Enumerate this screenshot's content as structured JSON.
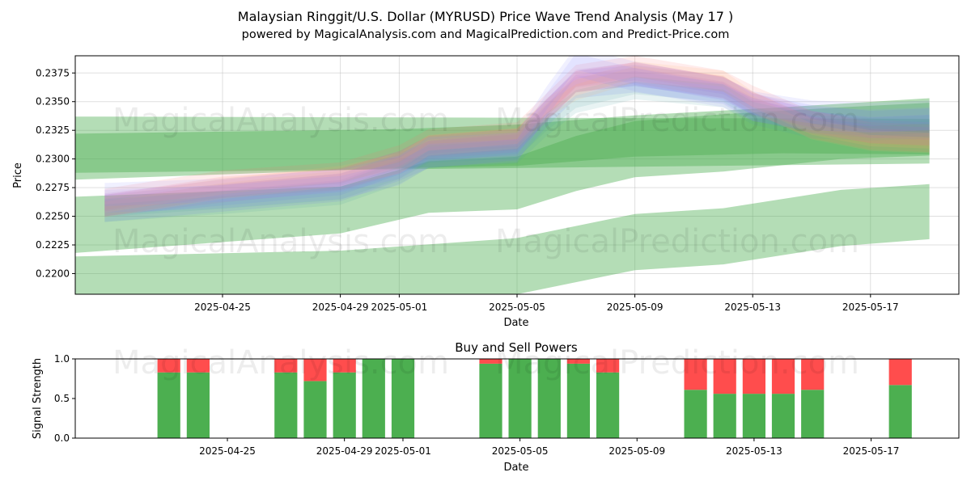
{
  "figure": {
    "title_line1": "Malaysian Ringgit/U.S. Dollar (MYRUSD) Price Wave Trend Analysis (May 17 )",
    "title_line2": "powered by MagicalAnalysis.com and MagicalPrediction.com and Predict-Price.com",
    "watermarks": [
      "MagicalAnalysis.com",
      "MagicalPrediction.com"
    ]
  },
  "colors": {
    "green_band": "#4caf50",
    "buy": "#4caf50",
    "sell": "#ff4d4d",
    "wave_colors": [
      "#6b6bff",
      "#ff6b6b",
      "#c05cc0",
      "#4aa0a0",
      "#ffb070",
      "#8a8aff"
    ]
  },
  "chart_data": [
    {
      "type": "area",
      "title": "",
      "xlabel": "Date",
      "ylabel": "Price",
      "xlim": [
        "2025-04-20",
        "2025-05-20"
      ],
      "ylim": [
        0.2182,
        0.239
      ],
      "x_ticks": [
        "2025-04-25",
        "2025-04-29",
        "2025-05-01",
        "2025-05-05",
        "2025-05-09",
        "2025-05-13",
        "2025-05-17"
      ],
      "y_ticks": [
        "0.2200",
        "0.2225",
        "0.2250",
        "0.2275",
        "0.2300",
        "0.2325",
        "0.2350",
        "0.2375"
      ],
      "grid": true,
      "green_bands": [
        {
          "dates": [
            "2025-04-20",
            "2025-05-19"
          ],
          "upper": [
            0.2337,
            0.2335
          ],
          "lower": [
            0.2288,
            0.2296
          ]
        },
        {
          "dates": [
            "2025-04-20",
            "2025-05-01",
            "2025-05-05",
            "2025-05-09",
            "2025-05-14",
            "2025-05-19"
          ],
          "upper": [
            0.2322,
            0.2326,
            0.233,
            0.2338,
            0.2345,
            0.2353
          ],
          "lower": [
            0.2282,
            0.2292,
            0.2294,
            0.2302,
            0.2305,
            0.2304
          ]
        },
        {
          "dates": [
            "2025-04-20",
            "2025-04-29",
            "2025-05-02",
            "2025-05-05",
            "2025-05-07",
            "2025-05-09",
            "2025-05-12",
            "2025-05-16",
            "2025-05-19"
          ],
          "upper": [
            0.2267,
            0.2276,
            0.2298,
            0.2302,
            0.232,
            0.2333,
            0.2339,
            0.2345,
            0.2349
          ],
          "lower": [
            0.2218,
            0.2235,
            0.2253,
            0.2256,
            0.2272,
            0.2284,
            0.2289,
            0.23,
            0.2303
          ]
        },
        {
          "dates": [
            "2025-04-20",
            "2025-04-29",
            "2025-05-05",
            "2025-05-09",
            "2025-05-12",
            "2025-05-16",
            "2025-05-19"
          ],
          "upper": [
            0.2215,
            0.222,
            0.2231,
            0.2252,
            0.2257,
            0.2273,
            0.2278
          ],
          "lower": [
            0.2182,
            0.2182,
            0.2182,
            0.2203,
            0.2208,
            0.2224,
            0.223
          ]
        }
      ],
      "waves": {
        "dates": [
          "2025-04-21",
          "2025-04-25",
          "2025-04-29",
          "2025-05-01",
          "2025-05-02",
          "2025-05-05",
          "2025-05-06",
          "2025-05-07",
          "2025-05-09",
          "2025-05-12",
          "2025-05-13",
          "2025-05-15",
          "2025-05-17",
          "2025-05-19"
        ],
        "series": [
          {
            "values": [
              0.2257,
              0.2266,
              0.2275,
              0.2293,
              0.2304,
              0.2311,
              0.234,
              0.2365,
              0.237,
              0.236,
              0.2345,
              0.2335,
              0.233,
              0.2332
            ],
            "width": 0.0012
          },
          {
            "values": [
              0.2262,
              0.2278,
              0.2285,
              0.23,
              0.2314,
              0.232,
              0.2345,
              0.237,
              0.2378,
              0.2365,
              0.2352,
              0.233,
              0.232,
              0.2318
            ],
            "width": 0.0012
          },
          {
            "values": [
              0.226,
              0.2272,
              0.2282,
              0.2297,
              0.231,
              0.2316,
              0.2342,
              0.2368,
              0.2374,
              0.2362,
              0.2348,
              0.2332,
              0.2324,
              0.2322
            ],
            "width": 0.001
          },
          {
            "values": [
              0.2255,
              0.2262,
              0.227,
              0.2288,
              0.2302,
              0.2306,
              0.233,
              0.235,
              0.2362,
              0.2355,
              0.234,
              0.2328,
              0.2326,
              0.2328
            ],
            "width": 0.001
          },
          {
            "values": [
              0.2258,
              0.2274,
              0.2285,
              0.2296,
              0.2312,
              0.2318,
              0.2344,
              0.236,
              0.2376,
              0.2368,
              0.235,
              0.2326,
              0.2316,
              0.2314
            ],
            "width": 0.0009
          },
          {
            "values": [
              0.2266,
              0.227,
              0.2278,
              0.229,
              0.2306,
              0.231,
              0.235,
              0.2385,
              0.2372,
              0.2358,
              0.2346,
              0.2338,
              0.2336,
              0.2338
            ],
            "width": 0.0013
          }
        ]
      }
    },
    {
      "type": "bar",
      "title": "Buy and Sell Powers",
      "xlabel": "Date",
      "ylabel": "Signal Strength",
      "ylim": [
        0,
        1.0
      ],
      "y_ticks": [
        "0.0",
        "0.5",
        "1.0"
      ],
      "x_ticks": [
        "2025-04-25",
        "2025-04-29",
        "2025-05-01",
        "2025-05-05",
        "2025-05-09",
        "2025-05-13",
        "2025-05-17"
      ],
      "dates": [
        "2025-04-23",
        "2025-04-24",
        "2025-04-27",
        "2025-04-28",
        "2025-04-29",
        "2025-04-30",
        "2025-05-01",
        "2025-05-04",
        "2025-05-05",
        "2025-05-06",
        "2025-05-07",
        "2025-05-08",
        "2025-05-11",
        "2025-05-12",
        "2025-05-13",
        "2025-05-14",
        "2025-05-15",
        "2025-05-18"
      ],
      "series": [
        {
          "name": "Buy",
          "values": [
            0.83,
            0.83,
            0.83,
            0.72,
            0.83,
            1.0,
            1.0,
            0.94,
            1.0,
            1.0,
            0.94,
            0.83,
            0.61,
            0.56,
            0.56,
            0.56,
            0.61,
            0.67
          ]
        },
        {
          "name": "Sell",
          "values": [
            0.17,
            0.17,
            0.17,
            0.28,
            0.17,
            0.0,
            0.0,
            0.06,
            0.0,
            0.0,
            0.06,
            0.17,
            0.39,
            0.44,
            0.44,
            0.44,
            0.39,
            0.33
          ]
        }
      ]
    }
  ]
}
